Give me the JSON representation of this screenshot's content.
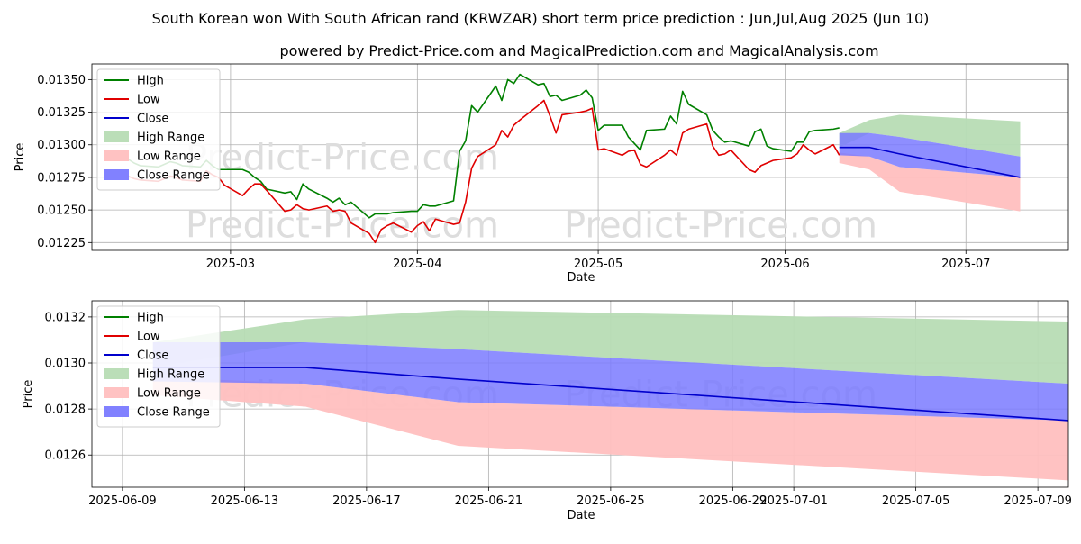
{
  "title": "South Korean won With South African rand (KRWZAR) short term price prediction : Jun,Jul,Aug 2025 (Jun 10)",
  "subtitle": "powered by Predict-Price.com and MagicalPrediction.com and MagicalAnalysis.com",
  "watermark": "Predict-Price.com",
  "colors": {
    "high": "#008000",
    "low": "#e00000",
    "close": "#0000cc",
    "high_range": "#b7dcb4",
    "low_range": "#ffbfbf",
    "close_range": "#7a7aff"
  },
  "chart_data": [
    {
      "type": "line",
      "xlabel": "Date",
      "ylabel": "Price",
      "x_ticks": [
        "2025-03",
        "2025-04",
        "2025-05",
        "2025-06",
        "2025-07"
      ],
      "y_ticks": [
        "0.01225",
        "0.01250",
        "0.01275",
        "0.01300",
        "0.01325",
        "0.01350"
      ],
      "xlim": [
        "2025-02-06",
        "2025-07-18"
      ],
      "ylim": [
        0.01219,
        0.01362
      ],
      "grid": true,
      "legend_position": "top-left",
      "legend": [
        "High",
        "Low",
        "Close",
        "High Range",
        "Low Range",
        "Close Range"
      ],
      "dates": [
        "2025-02-12",
        "2025-02-13",
        "2025-02-14",
        "2025-02-17",
        "2025-02-18",
        "2025-02-19",
        "2025-02-20",
        "2025-02-21",
        "2025-02-24",
        "2025-02-25",
        "2025-02-26",
        "2025-02-27",
        "2025-02-28",
        "2025-03-03",
        "2025-03-04",
        "2025-03-05",
        "2025-03-06",
        "2025-03-07",
        "2025-03-10",
        "2025-03-11",
        "2025-03-12",
        "2025-03-13",
        "2025-03-14",
        "2025-03-17",
        "2025-03-18",
        "2025-03-19",
        "2025-03-20",
        "2025-03-21",
        "2025-03-24",
        "2025-03-25",
        "2025-03-26",
        "2025-03-27",
        "2025-03-28",
        "2025-03-31",
        "2025-04-01",
        "2025-04-02",
        "2025-04-03",
        "2025-04-04",
        "2025-04-07",
        "2025-04-08",
        "2025-04-09",
        "2025-04-10",
        "2025-04-11",
        "2025-04-14",
        "2025-04-15",
        "2025-04-16",
        "2025-04-17",
        "2025-04-18",
        "2025-04-21",
        "2025-04-22",
        "2025-04-23",
        "2025-04-24",
        "2025-04-25",
        "2025-04-28",
        "2025-04-29",
        "2025-04-30",
        "2025-05-01",
        "2025-05-02",
        "2025-05-05",
        "2025-05-06",
        "2025-05-07",
        "2025-05-08",
        "2025-05-09",
        "2025-05-12",
        "2025-05-13",
        "2025-05-14",
        "2025-05-15",
        "2025-05-16",
        "2025-05-19",
        "2025-05-20",
        "2025-05-21",
        "2025-05-22",
        "2025-05-23",
        "2025-05-26",
        "2025-05-27",
        "2025-05-28",
        "2025-05-29",
        "2025-05-30",
        "2025-06-02",
        "2025-06-03",
        "2025-06-04",
        "2025-06-05",
        "2025-06-06",
        "2025-06-09",
        "2025-06-10"
      ],
      "high": [
        0.01289,
        0.01286,
        0.01284,
        0.01283,
        0.01285,
        0.01287,
        0.01286,
        0.01284,
        0.01283,
        0.01288,
        0.01284,
        0.01281,
        0.01281,
        0.01281,
        0.01279,
        0.01275,
        0.01272,
        0.01266,
        0.01263,
        0.01264,
        0.01258,
        0.0127,
        0.01266,
        0.01259,
        0.01256,
        0.01259,
        0.01254,
        0.01256,
        0.01244,
        0.01247,
        0.01247,
        0.01247,
        0.01248,
        0.01249,
        0.01249,
        0.01254,
        0.01253,
        0.01253,
        0.01257,
        0.01295,
        0.01303,
        0.0133,
        0.01325,
        0.01345,
        0.01334,
        0.0135,
        0.01347,
        0.01354,
        0.01346,
        0.01347,
        0.01337,
        0.01338,
        0.01334,
        0.01338,
        0.01342,
        0.01336,
        0.01311,
        0.01315,
        0.01315,
        0.01306,
        0.01301,
        0.01296,
        0.01311,
        0.01312,
        0.01322,
        0.01316,
        0.01341,
        0.01331,
        0.01323,
        0.01311,
        0.01306,
        0.01302,
        0.01303,
        0.01299,
        0.0131,
        0.01312,
        0.01299,
        0.01297,
        0.01295,
        0.01302,
        0.01302,
        0.0131,
        0.01311,
        0.01312,
        0.01313
      ],
      "low": [
        0.01276,
        0.01274,
        0.01273,
        0.01272,
        0.01274,
        0.01276,
        0.01275,
        0.01273,
        0.01272,
        0.0128,
        0.01277,
        0.01275,
        0.01269,
        0.01261,
        0.01266,
        0.0127,
        0.0127,
        0.01265,
        0.01249,
        0.0125,
        0.01254,
        0.01251,
        0.0125,
        0.01253,
        0.01249,
        0.0125,
        0.01249,
        0.0124,
        0.01232,
        0.01225,
        0.01235,
        0.01238,
        0.0124,
        0.01233,
        0.01238,
        0.01241,
        0.01234,
        0.01243,
        0.01239,
        0.0124,
        0.01256,
        0.01282,
        0.01291,
        0.013,
        0.01311,
        0.01306,
        0.01315,
        0.01319,
        0.0133,
        0.01334,
        0.01322,
        0.01309,
        0.01323,
        0.01325,
        0.01326,
        0.01328,
        0.01296,
        0.01297,
        0.01292,
        0.01295,
        0.01296,
        0.01285,
        0.01283,
        0.01292,
        0.01296,
        0.01292,
        0.01309,
        0.01312,
        0.01316,
        0.01299,
        0.01292,
        0.01293,
        0.01296,
        0.01281,
        0.01279,
        0.01284,
        0.01286,
        0.01288,
        0.0129,
        0.01293,
        0.013,
        0.01296,
        0.01293,
        0.013,
        0.01292
      ]
    },
    {
      "type": "area",
      "xlabel": "Date",
      "ylabel": "Price",
      "x_ticks": [
        "2025-06-09",
        "2025-06-13",
        "2025-06-17",
        "2025-06-21",
        "2025-06-25",
        "2025-06-29",
        "2025-07-01",
        "2025-07-05",
        "2025-07-09"
      ],
      "y_ticks": [
        "0.0126",
        "0.0128",
        "0.0130",
        "0.0132"
      ],
      "xlim": [
        "2025-06-08",
        "2025-07-10"
      ],
      "ylim": [
        0.01246,
        0.01327
      ],
      "grid": true,
      "legend_position": "top-left",
      "legend": [
        "High",
        "Low",
        "Close",
        "High Range",
        "Low Range",
        "Close Range"
      ],
      "dates": [
        "2025-06-10",
        "2025-06-15",
        "2025-06-20",
        "2025-07-10"
      ],
      "close": [
        0.01298,
        0.01298,
        0.01293,
        0.01275
      ],
      "high_range": {
        "upper": [
          0.01309,
          0.01319,
          0.01323,
          0.01318
        ],
        "lower": [
          0.01298,
          0.01309,
          0.01306,
          0.01291
        ]
      },
      "low_range": {
        "upper": [
          0.01294,
          0.01291,
          0.01283,
          0.01275
        ],
        "lower": [
          0.01286,
          0.01281,
          0.01264,
          0.01249
        ]
      },
      "close_range": {
        "upper": [
          0.01309,
          0.01309,
          0.01306,
          0.01291
        ],
        "lower": [
          0.01292,
          0.01291,
          0.01283,
          0.01275
        ]
      }
    }
  ],
  "prev_close": 0.01296
}
